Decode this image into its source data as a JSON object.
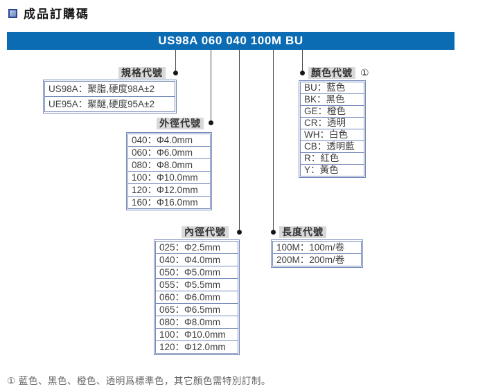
{
  "page": {
    "title": "成品訂購碼",
    "note": "① 藍色、黑色、橙色、透明爲標準色，其它顏色需特別訂制。"
  },
  "banner": {
    "code": "US98A 060 040 100M BU"
  },
  "groups": {
    "spec": {
      "label": "規格代號",
      "rows": [
        "US98A：聚脂,硬度98A±2",
        "UE95A：聚醚,硬度95A±2"
      ]
    },
    "outer_dia": {
      "label": "外徑代號",
      "rows": [
        "040：Φ4.0mm",
        "060：Φ6.0mm",
        "080：Φ8.0mm",
        "100：Φ10.0mm",
        "120：Φ12.0mm",
        "160：Φ16.0mm"
      ]
    },
    "color": {
      "label": "顏色代號",
      "superscript": "①",
      "rows": [
        "BU：藍色",
        "BK：黑色",
        "GE：橙色",
        "CR：透明",
        "WH：白色",
        "CB：透明藍",
        "R：紅色",
        "Y：黃色"
      ]
    },
    "inner_dia": {
      "label": "內徑代號",
      "rows": [
        "025：Φ2.5mm",
        "040：Φ4.0mm",
        "050：Φ5.0mm",
        "055：Φ5.5mm",
        "060：Φ6.0mm",
        "065：Φ6.5mm",
        "080：Φ8.0mm",
        "100：Φ10.0mm",
        "120：Φ12.0mm"
      ]
    },
    "length": {
      "label": "長度代號",
      "rows": [
        "100M：100m/卷",
        "200M：200m/卷"
      ]
    }
  },
  "colors": {
    "banner_blue": "#0b6cb4",
    "table_border": "#7388b8",
    "label_bg": "#d9d9d9",
    "line": "#4a4a4a"
  }
}
